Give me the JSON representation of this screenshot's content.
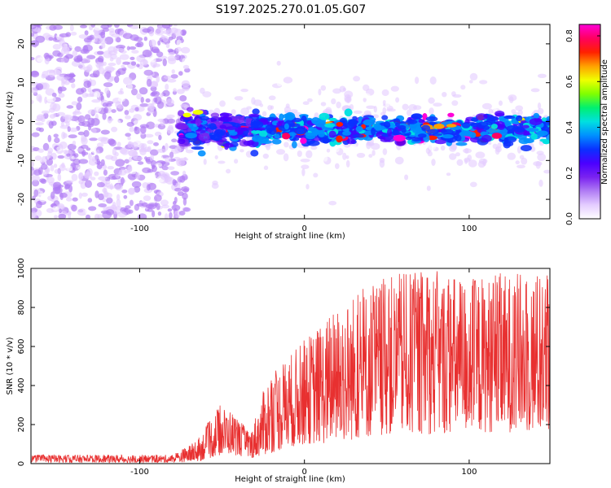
{
  "title": "S197.2025.270.01.05.G07",
  "chart_data": [
    {
      "type": "heatmap",
      "name": "spectrogram",
      "xlabel": "Height of straight line (km)",
      "ylabel": "Frequency (Hz)",
      "xlim": [
        -166,
        149
      ],
      "ylim": [
        -25,
        25
      ],
      "xticks": [
        -100,
        0,
        100
      ],
      "xtick_labels": [
        "-100",
        "0",
        "100"
      ],
      "yticks": [
        20,
        10,
        0,
        -10,
        -20
      ],
      "ytick_labels": [
        "20",
        "10",
        "0",
        "-10",
        "-20"
      ],
      "colorbar": {
        "label": "Normalized spectral amplitude",
        "range": [
          0,
          0.85
        ],
        "ticks": [
          0,
          0.2,
          0.4,
          0.6,
          0.8
        ],
        "tick_labels": [
          "0.0",
          "0.2",
          "0.4",
          "0.6",
          "0.8"
        ],
        "colors": [
          "#ffffff",
          "#e4ccff",
          "#b07cf4",
          "#7a22f0",
          "#4b00ff",
          "#0a30ff",
          "#0090ff",
          "#00e0e0",
          "#00f070",
          "#80ff00",
          "#f0ff00",
          "#ffa000",
          "#ff2000",
          "#ff0060",
          "#ff00d8"
        ]
      },
      "regions": {
        "noise_x_range": [
          -166,
          -75
        ],
        "signal_x_range": [
          -75,
          149
        ],
        "signal_center_hz": -2,
        "signal_halfwidth_hz": 4
      }
    },
    {
      "type": "line",
      "name": "snr",
      "xlabel": "Height of straight line (km)",
      "ylabel": "SNR (10 * v/v)",
      "xlim": [
        -166,
        149
      ],
      "ylim": [
        0,
        1000
      ],
      "xticks": [
        -100,
        0,
        100
      ],
      "xtick_labels": [
        "-100",
        "0",
        "100"
      ],
      "yticks": [
        0,
        200,
        400,
        600,
        800,
        1000
      ],
      "ytick_labels": [
        "0",
        "200",
        "400",
        "600",
        "800",
        "1000"
      ],
      "color": "#e83030",
      "envelope": {
        "x": [
          -166,
          -80,
          -65,
          -52,
          -45,
          -33,
          -22,
          -10,
          0,
          10,
          20,
          30,
          50,
          75,
          100,
          125,
          149
        ],
        "low": [
          5,
          5,
          10,
          40,
          50,
          25,
          50,
          80,
          100,
          100,
          110,
          120,
          150,
          150,
          160,
          160,
          160
        ],
        "high": [
          45,
          45,
          120,
          300,
          280,
          160,
          450,
          550,
          640,
          720,
          800,
          880,
          960,
          1000,
          960,
          980,
          1000
        ]
      }
    }
  ]
}
